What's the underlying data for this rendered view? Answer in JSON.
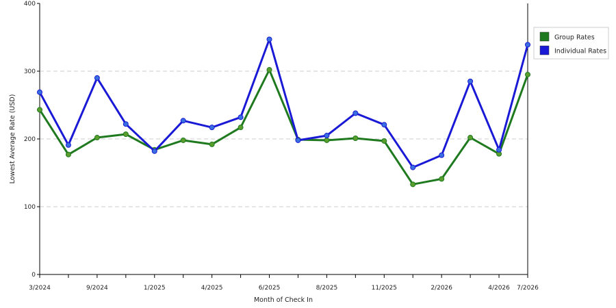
{
  "colors": {
    "group": "#1f7a1f",
    "group_marker": "#5a9e2e",
    "individual": "#1a1ad6",
    "individual_marker": "#3a6fe0",
    "grid": "#cccccc",
    "axis": "#000000"
  },
  "chart_data": {
    "type": "line",
    "xlabel": "Month of Check In",
    "ylabel": "Lowest Average Rate (USD)",
    "ylim": [
      0,
      400
    ],
    "yticks": [
      0,
      100,
      200,
      300,
      400
    ],
    "x_tick_labels": [
      {
        "index": 0,
        "label": "3/2024"
      },
      {
        "index": 2,
        "label": "9/2024"
      },
      {
        "index": 4,
        "label": "1/2025"
      },
      {
        "index": 6,
        "label": "4/2025"
      },
      {
        "index": 8,
        "label": "6/2025"
      },
      {
        "index": 10,
        "label": "8/2025"
      },
      {
        "index": 12,
        "label": "11/2025"
      },
      {
        "index": 14,
        "label": "2/2026"
      },
      {
        "index": 16,
        "label": "4/2026"
      },
      {
        "index": 17,
        "label": "7/2026"
      }
    ],
    "grid": "horizontal dashed",
    "legend_position": "right",
    "series": [
      {
        "name": "Group Rates",
        "values": [
          243,
          177,
          202,
          207,
          184,
          198,
          192,
          217,
          302,
          199,
          198,
          201,
          197,
          133,
          141,
          202,
          178,
          295
        ]
      },
      {
        "name": "Individual Rates",
        "values": [
          269,
          191,
          290,
          222,
          182,
          227,
          217,
          232,
          347,
          198,
          205,
          238,
          221,
          158,
          176,
          285,
          184,
          339
        ]
      }
    ]
  }
}
